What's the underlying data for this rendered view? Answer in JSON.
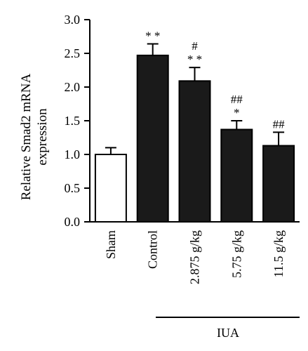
{
  "chart_data": {
    "type": "bar",
    "title": "",
    "ylabel_line1": "Relative Smad2 mRNA",
    "ylabel_line2": "expression",
    "xlabel": "",
    "ylim": [
      0,
      3.0
    ],
    "y_ticks": [
      "0.0",
      "0.5",
      "1.0",
      "1.5",
      "2.0",
      "2.5",
      "3.0"
    ],
    "categories": [
      "Sham",
      "Control",
      "2.875 g/kg",
      "5.75 g/kg",
      "11.5 g/kg"
    ],
    "values": [
      1.0,
      2.47,
      2.09,
      1.37,
      1.13
    ],
    "errors": [
      0.1,
      0.17,
      0.2,
      0.13,
      0.2
    ],
    "bar_colors": [
      "#ffffff",
      "#1a1a1a",
      "#1a1a1a",
      "#1a1a1a",
      "#1a1a1a"
    ],
    "significance": [
      [],
      [
        "* *"
      ],
      [
        "#",
        "* *"
      ],
      [
        "##",
        "*"
      ],
      [
        "##"
      ]
    ],
    "group_label": "IUA",
    "group_start_index": 1,
    "grid": false,
    "legend": "none"
  }
}
